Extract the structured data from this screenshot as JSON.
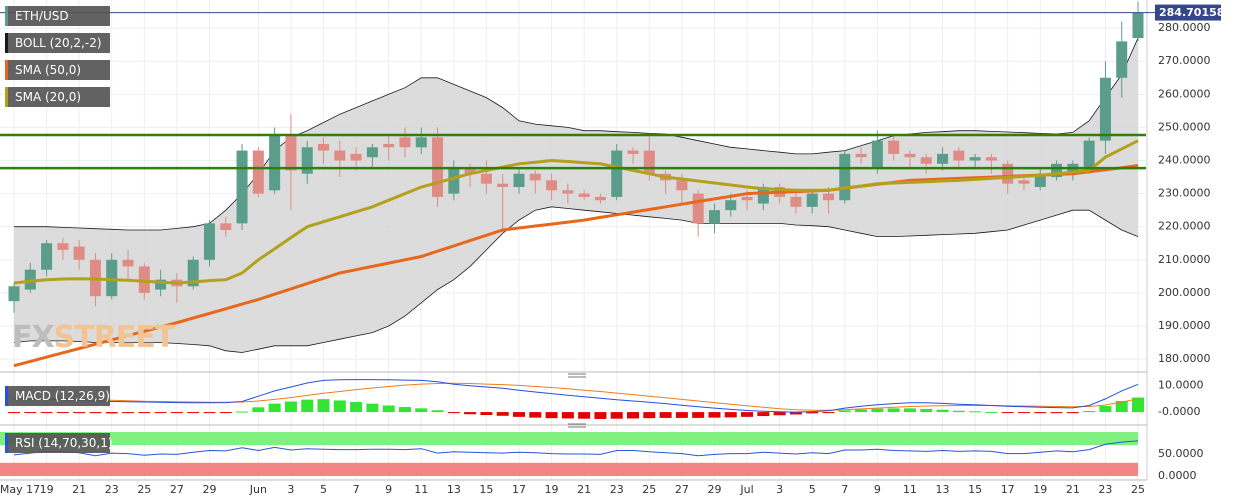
{
  "watermark": [
    "FX",
    "STREET"
  ],
  "chart_data": [
    {
      "type": "candlestick",
      "symbol": "ETH/USD",
      "categories": [
        "May 17",
        null,
        "19",
        null,
        "21",
        null,
        "23",
        null,
        "25",
        null,
        "27",
        null,
        "29",
        null,
        null,
        "Jun",
        null,
        "3",
        null,
        "5",
        null,
        "7",
        null,
        "9",
        null,
        "11",
        null,
        "13",
        null,
        "15",
        null,
        "17",
        null,
        "19",
        null,
        "21",
        null,
        "23",
        null,
        "25",
        null,
        "27",
        null,
        "29",
        null,
        "Jul",
        null,
        "3",
        null,
        "5",
        null,
        "7",
        null,
        "9",
        null,
        "11",
        null,
        "13",
        null,
        "15",
        null,
        "17",
        null,
        "19",
        null,
        "21",
        null,
        "23",
        null,
        "25"
      ],
      "open": [
        197.5,
        201,
        207,
        215,
        214,
        210,
        199,
        210,
        208,
        201,
        204,
        202,
        210,
        221,
        221,
        243,
        231,
        248,
        236,
        245,
        243,
        242,
        241,
        245,
        247,
        244,
        247,
        230,
        238,
        236,
        233,
        232,
        236,
        234,
        231,
        230,
        229,
        229,
        243,
        243,
        236,
        234,
        230,
        221,
        225,
        229,
        227,
        232,
        229,
        226,
        230,
        228,
        242,
        238,
        246,
        242,
        241,
        239,
        243,
        240,
        241,
        239,
        234,
        232,
        235,
        236,
        237,
        246,
        265,
        277
      ],
      "high": [
        203,
        209,
        216,
        216.5,
        216,
        212,
        212,
        213,
        209,
        207,
        206,
        211,
        222,
        223,
        245,
        244,
        250,
        254,
        246,
        247,
        246,
        244,
        245,
        248,
        250,
        250,
        250,
        240,
        239,
        240,
        236,
        238,
        237,
        236,
        233,
        231,
        230,
        245,
        244,
        248,
        237,
        236,
        231,
        227,
        230,
        231,
        233,
        233,
        230,
        231,
        232,
        243,
        244,
        249,
        248,
        243,
        242,
        244,
        244,
        242,
        242,
        240,
        236,
        238,
        240,
        240,
        247,
        270,
        282,
        288
      ],
      "low": [
        194,
        200,
        205,
        210,
        207,
        196,
        198,
        204,
        198,
        199,
        197,
        201,
        208,
        217,
        219,
        229,
        230,
        225,
        233,
        239,
        235,
        237,
        238,
        240,
        241,
        242,
        226,
        228,
        232,
        230,
        218,
        230,
        230,
        228,
        227,
        228,
        227,
        228,
        239,
        234,
        230,
        227,
        217,
        218,
        223,
        225,
        225,
        227,
        224,
        224,
        224,
        227,
        239,
        236,
        240,
        238,
        236,
        237,
        238,
        238,
        236,
        230,
        231,
        231,
        234,
        234,
        236,
        242,
        259,
        276
      ],
      "close": [
        202,
        207,
        215,
        213,
        210,
        199,
        210,
        208,
        200,
        204,
        202,
        210,
        221,
        219,
        243,
        230,
        248,
        237,
        244,
        243,
        240,
        240,
        244,
        244,
        244,
        247,
        229,
        238,
        236,
        233,
        232,
        236,
        234,
        231,
        230,
        229,
        228,
        243,
        242,
        236,
        234,
        231,
        221,
        225,
        228,
        228,
        232,
        229,
        226,
        230,
        228,
        242,
        241,
        246,
        242,
        241,
        239,
        242,
        240,
        241,
        240,
        233,
        233,
        236,
        239,
        239,
        246,
        265,
        276,
        284.7
      ],
      "up_color": "#5a9d8a",
      "down_color": "#de8c85",
      "bollinger": {
        "name": "BOLL (20,2,-2)",
        "color": "#1a1a1a",
        "upper": [
          220,
          220,
          220,
          219.8,
          219.6,
          219.4,
          219.2,
          219,
          219,
          219,
          219.5,
          220,
          221,
          225,
          230,
          236,
          243,
          247,
          249,
          251.5,
          254,
          256,
          258,
          260,
          262,
          265,
          265,
          263,
          261,
          259,
          256,
          252,
          251,
          250.5,
          250,
          249,
          249,
          248.7,
          248.5,
          248.2,
          248,
          247,
          246,
          245,
          244,
          243.5,
          243,
          242.5,
          242,
          242,
          242.5,
          243,
          244.5,
          246,
          247.5,
          248,
          248.5,
          248.7,
          249,
          249,
          248.8,
          248.6,
          248.4,
          248.2,
          248,
          248.5,
          252,
          259,
          266,
          277
        ],
        "lower": [
          185,
          185.5,
          185.5,
          185.5,
          185.3,
          185,
          185,
          185,
          185,
          185,
          184.7,
          184.4,
          184,
          182.5,
          182,
          183,
          184,
          184,
          184,
          185,
          186,
          187,
          188,
          190,
          193,
          197,
          201,
          204,
          208,
          213,
          218,
          222,
          225,
          226,
          225.5,
          225,
          224.5,
          224,
          223.5,
          223,
          222.5,
          222,
          221,
          221,
          221,
          221,
          221,
          221,
          220.5,
          220.3,
          220,
          219,
          218,
          217,
          217,
          217.2,
          217.4,
          217.6,
          217.8,
          218,
          218.5,
          219,
          220.5,
          222,
          223.5,
          225,
          225,
          222,
          219,
          217
        ]
      },
      "series": [
        {
          "name": "SMA (50,0)",
          "color": "#e8671c",
          "values": [
            178,
            179.3,
            180.6,
            181.9,
            183.2,
            184.5,
            185.8,
            187.1,
            188.4,
            189.7,
            191,
            192.4,
            193.8,
            195.2,
            196.6,
            198,
            199.6,
            201.2,
            202.8,
            204.4,
            206,
            207,
            208,
            209,
            210,
            211,
            212.6,
            214.2,
            215.8,
            217.4,
            219,
            219.6,
            220.2,
            220.8,
            221.4,
            222,
            222.8,
            223.6,
            224.4,
            225.2,
            226,
            226.8,
            227.6,
            228.4,
            229.2,
            230,
            230.2,
            230.4,
            230.6,
            230.8,
            231,
            231.6,
            232.2,
            232.8,
            233.4,
            234,
            234.2,
            234.4,
            234.6,
            234.8,
            235,
            235.2,
            235.4,
            235.6,
            235.8,
            236,
            236.6,
            237.2,
            237.8,
            238.5
          ]
        },
        {
          "name": "SMA (20,0)",
          "color": "#b3a11c",
          "values": [
            203,
            203.5,
            204,
            204.2,
            204.3,
            204.2,
            204,
            203.8,
            203.5,
            203.2,
            203,
            203.3,
            203.7,
            204,
            206,
            210,
            213.3,
            216.7,
            220,
            221.5,
            223,
            224.5,
            226,
            228,
            230,
            232,
            233.3,
            234.7,
            236,
            237,
            238,
            239,
            239.5,
            240,
            239.7,
            239.3,
            239,
            238,
            237,
            236,
            235,
            234.4,
            233.8,
            233.2,
            232.6,
            232,
            231.5,
            231.2,
            231,
            231,
            231,
            231.7,
            232.3,
            233,
            233.2,
            233.4,
            233.6,
            233.8,
            234,
            234.3,
            234.6,
            234.9,
            235.2,
            235.5,
            236,
            236.5,
            237,
            241,
            243.5,
            246
          ]
        }
      ],
      "hlines": [
        {
          "value": 247.7,
          "color": "#2f7f0c"
        },
        {
          "value": 237.7,
          "color": "#2f7f0c"
        }
      ],
      "last_price": 284.70158,
      "ylim": [
        176.7,
        288.5
      ],
      "yticks": [
        {
          "value": 180,
          "label": "180.0000"
        },
        {
          "value": 190,
          "label": "190.0000"
        },
        {
          "value": 200,
          "label": "200.0000"
        },
        {
          "value": 210,
          "label": "210.0000"
        },
        {
          "value": 220,
          "label": "220.0000"
        },
        {
          "value": 230,
          "label": "230.0000"
        },
        {
          "value": 240,
          "label": "240.0000"
        },
        {
          "value": 250,
          "label": "250.0000"
        },
        {
          "value": 260,
          "label": "260.0000"
        },
        {
          "value": 270,
          "label": "270.0000"
        },
        {
          "value": 280,
          "label": "280.0000"
        }
      ],
      "grid": true
    },
    {
      "type": "macd",
      "name": "MACD (12,26,9)",
      "macd": [
        5,
        4.8,
        4.7,
        4.6,
        4.4,
        4.2,
        4,
        3.9,
        3.8,
        3.7,
        3.6,
        3.5,
        3.5,
        3.6,
        4,
        6,
        8,
        9.5,
        11,
        12,
        12.2,
        12.3,
        12.3,
        12.2,
        12.1,
        12,
        11.5,
        10.5,
        10,
        9.5,
        9,
        8.3,
        7.6,
        7,
        6.4,
        5.8,
        5.2,
        4.7,
        4.2,
        3.7,
        3.2,
        2.6,
        2,
        1.5,
        1,
        0.6,
        0.3,
        0.1,
        0,
        0.2,
        0.5,
        1.5,
        2.2,
        2.8,
        3.2,
        3.5,
        3.5,
        3.3,
        3,
        2.8,
        2.5,
        2.2,
        2,
        1.8,
        1.7,
        1.6,
        2.5,
        5,
        8,
        10.5
      ],
      "signal": [
        5.2,
        5.1,
        5,
        4.9,
        4.8,
        4.6,
        4.5,
        4.3,
        4.1,
        4,
        3.9,
        3.8,
        3.7,
        3.7,
        3.8,
        4.2,
        4.8,
        5.5,
        6.3,
        7.1,
        7.8,
        8.5,
        9.1,
        9.7,
        10.2,
        10.6,
        10.8,
        10.9,
        10.8,
        10.6,
        10.4,
        10.1,
        9.7,
        9.3,
        8.8,
        8.3,
        7.8,
        7.2,
        6.6,
        6,
        5.4,
        4.8,
        4.2,
        3.6,
        3,
        2.4,
        1.8,
        1.3,
        0.9,
        0.7,
        0.7,
        0.9,
        1.2,
        1.5,
        1.8,
        2.1,
        2.3,
        2.4,
        2.5,
        2.5,
        2.5,
        2.4,
        2.3,
        2.2,
        2.1,
        2,
        2.1,
        2.7,
        3.8,
        5
      ],
      "histogram": [
        -0.2,
        -0.3,
        -0.3,
        -0.3,
        -0.4,
        -0.4,
        -0.5,
        -0.4,
        -0.3,
        -0.3,
        -0.3,
        -0.3,
        -0.2,
        -0.1,
        0.2,
        1.8,
        3.2,
        4,
        4.7,
        4.9,
        4.4,
        3.8,
        3.2,
        2.5,
        1.9,
        1.4,
        0.7,
        -0.4,
        -0.8,
        -1.1,
        -1.4,
        -1.8,
        -2.1,
        -2.3,
        -2.4,
        -2.5,
        -2.6,
        -2.5,
        -2.4,
        -2.3,
        -2.2,
        -2.2,
        -2.2,
        -2.1,
        -2,
        -1.8,
        -1.5,
        -1.2,
        -0.9,
        -0.5,
        -0.2,
        0.6,
        1,
        1.3,
        1.4,
        1.4,
        1.2,
        0.9,
        0.5,
        0.3,
        0,
        -0.2,
        -0.3,
        -0.4,
        -0.4,
        -0.4,
        0.4,
        2.3,
        4.2,
        5.5
      ],
      "macd_color": "#2451e0",
      "signal_color": "#f07c1c",
      "up_color": "#33e433",
      "down_color": "#e40000",
      "ylim": [
        -3.75,
        12.9
      ],
      "yticks": [
        {
          "value": 10,
          "label": "10.0000"
        },
        {
          "value": 0,
          "label": "-0.0000"
        }
      ]
    },
    {
      "type": "rsi",
      "name": "RSI (14,70,30,1)",
      "values": [
        48,
        52,
        56,
        55,
        53,
        46,
        52,
        51,
        47,
        50,
        49,
        54,
        58,
        57,
        64,
        58,
        65,
        59,
        62,
        61,
        60,
        60,
        61,
        61,
        60,
        62,
        52,
        55,
        54,
        53,
        52,
        54,
        53,
        51,
        50,
        50,
        49,
        58,
        58,
        55,
        53,
        51,
        46,
        49,
        51,
        51,
        54,
        52,
        50,
        53,
        51,
        59,
        59,
        61,
        58,
        57,
        56,
        58,
        56,
        57,
        56,
        51,
        51,
        54,
        57,
        55,
        60,
        72,
        77,
        80
      ],
      "color": "#2b55d6",
      "overbought": 70,
      "oversold": 30,
      "ylim": [
        0,
        100
      ],
      "yticks": [
        {
          "value": 50,
          "label": "50.0000"
        },
        {
          "value": 0,
          "label": "0.0000"
        }
      ]
    }
  ]
}
